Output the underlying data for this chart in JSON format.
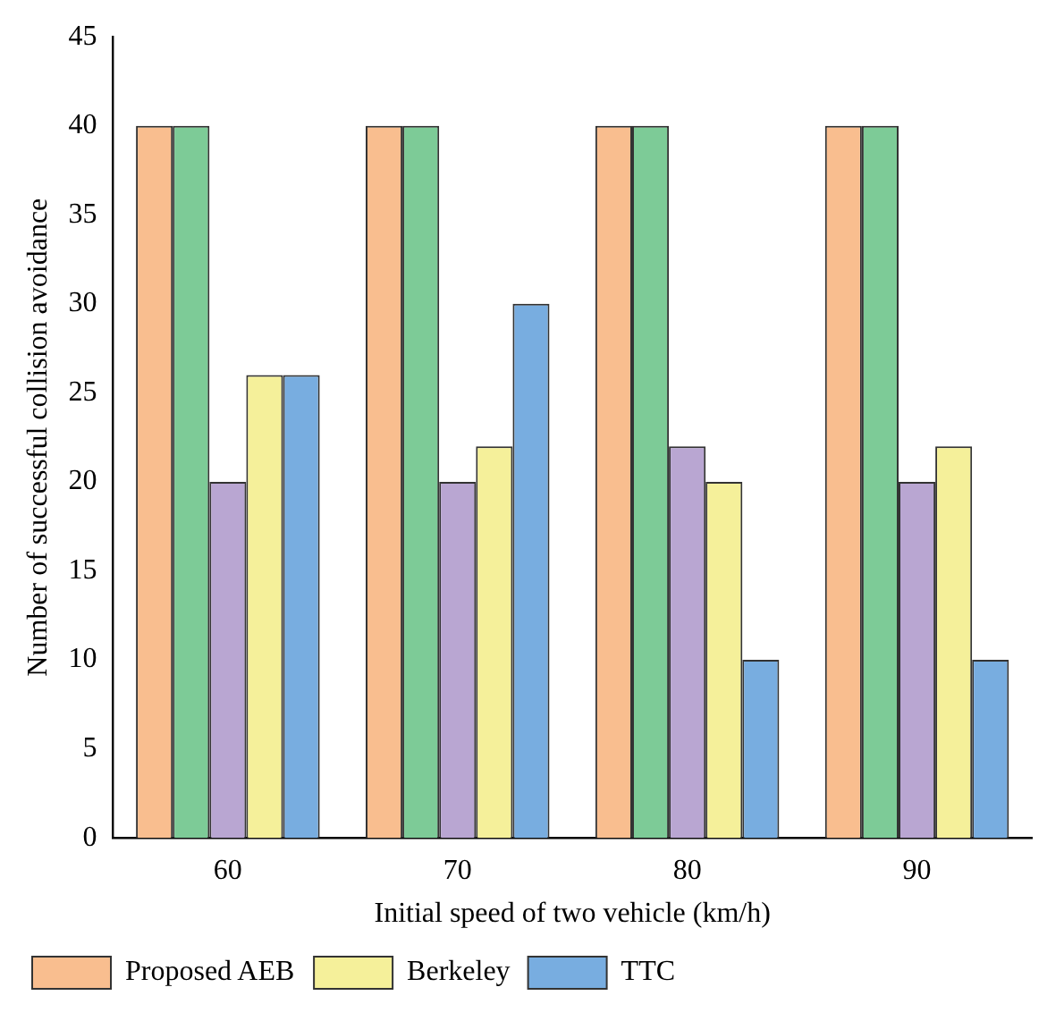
{
  "chart_data": {
    "type": "bar",
    "xlabel": "Initial speed of two vehicle (km/h)",
    "ylabel": "Number of successful collision avoidance",
    "categories": [
      "60",
      "70",
      "80",
      "90"
    ],
    "series": [
      {
        "name": "Proposed AEB",
        "color": "#f9be8f",
        "values": [
          40,
          40,
          40,
          40
        ]
      },
      {
        "color": "#7dcb97",
        "values": [
          40,
          40,
          40,
          40
        ]
      },
      {
        "color": "#b9a6d2",
        "values": [
          20,
          20,
          22,
          20
        ]
      },
      {
        "name": "Berkeley",
        "color": "#f5f09a",
        "values": [
          26,
          22,
          20,
          22
        ]
      },
      {
        "name": "TTC",
        "color": "#78ade0",
        "values": [
          26,
          30,
          10,
          10
        ]
      }
    ],
    "ylim": [
      0,
      45
    ],
    "yticks": [
      0,
      5,
      10,
      15,
      20,
      25,
      30,
      35,
      40,
      45
    ],
    "grid": false,
    "legend": "bottom"
  }
}
